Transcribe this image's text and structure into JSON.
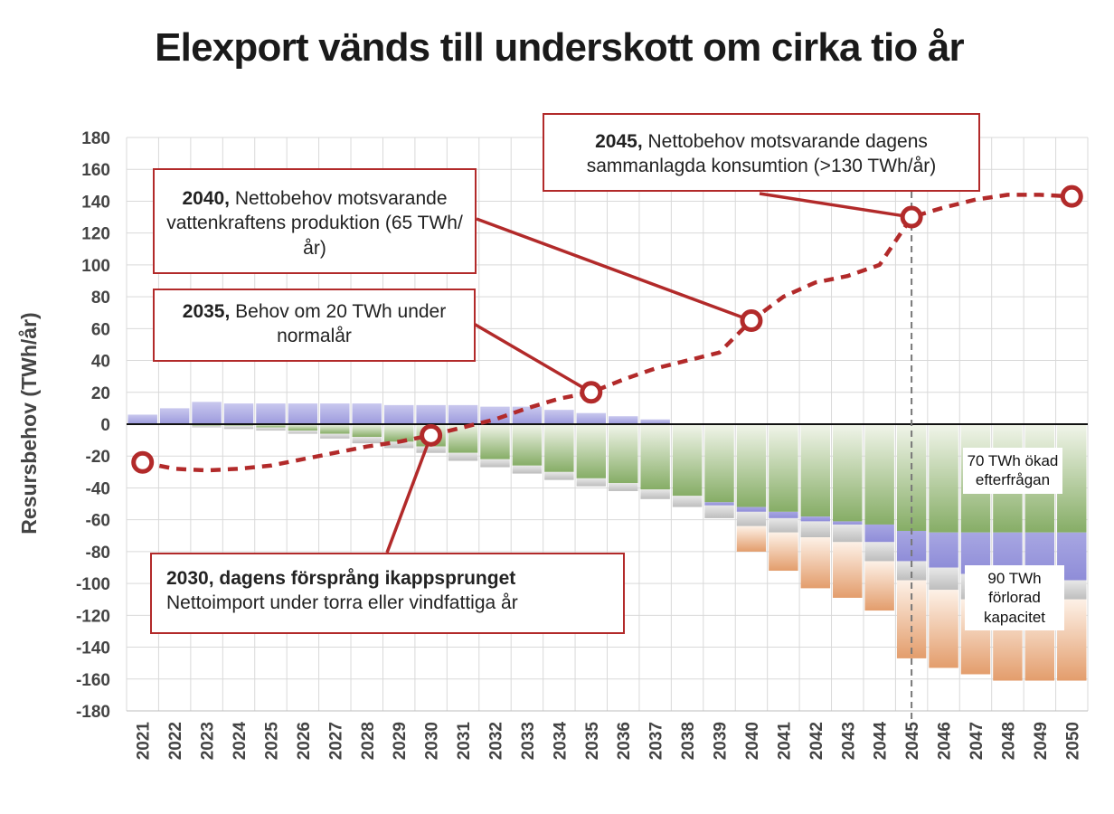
{
  "title": "Elexport vänds till underskott om cirka tio år",
  "chart_data": {
    "type": "bar",
    "ylabel": "Resursbehov (TWh/år)",
    "ylim": [
      -180,
      180
    ],
    "yticks": [
      180,
      160,
      140,
      120,
      100,
      80,
      60,
      40,
      20,
      0,
      -20,
      -40,
      -60,
      -80,
      -100,
      -120,
      -140,
      -160,
      -180
    ],
    "categories": [
      "2021",
      "2022",
      "2023",
      "2024",
      "2025",
      "2026",
      "2027",
      "2028",
      "2029",
      "2030",
      "2031",
      "2032",
      "2033",
      "2034",
      "2035",
      "2036",
      "2037",
      "2038",
      "2039",
      "2040",
      "2041",
      "2042",
      "2043",
      "2044",
      "2045",
      "2046",
      "2047",
      "2048",
      "2049",
      "2050"
    ],
    "stacks": {
      "export_surplus": {
        "color": "#a9a6dc",
        "values": [
          6,
          10,
          14,
          13,
          13,
          13,
          13,
          13,
          12,
          12,
          12,
          11,
          11,
          9,
          7,
          5,
          3,
          0,
          0,
          0,
          0,
          0,
          0,
          0,
          0,
          0,
          0,
          0,
          0,
          0
        ]
      },
      "increased_demand": {
        "color": "#8fb26d",
        "values": [
          0,
          0,
          -1,
          -1,
          -2,
          -4,
          -6,
          -8,
          -11,
          -14,
          -18,
          -22,
          -26,
          -30,
          -34,
          -37,
          -41,
          -45,
          -49,
          -52,
          -55,
          -58,
          -61,
          -63,
          -67,
          -68,
          -68,
          -68,
          -68,
          -68
        ]
      },
      "demand_capacity_overlap": {
        "color": "#8f8fd8",
        "values": [
          0,
          0,
          0,
          0,
          0,
          0,
          0,
          0,
          0,
          0,
          0,
          0,
          0,
          0,
          0,
          0,
          0,
          0,
          -2,
          -3,
          -4,
          -3,
          -2,
          -11,
          -19,
          -22,
          -26,
          -28,
          -30,
          -30
        ]
      },
      "grey_margin": {
        "color": "#c8c8c8",
        "values": [
          0,
          0,
          -1,
          -2,
          -2,
          -2,
          -3,
          -4,
          -4,
          -4,
          -5,
          -5,
          -5,
          -5,
          -5,
          -5,
          -6,
          -7,
          -8,
          -9,
          -9,
          -10,
          -11,
          -12,
          -12,
          -14,
          -16,
          -14,
          -14,
          -12
        ]
      },
      "lost_capacity": {
        "color": "#e7a97e",
        "values": [
          0,
          0,
          0,
          0,
          0,
          0,
          0,
          0,
          0,
          0,
          0,
          0,
          0,
          0,
          0,
          0,
          0,
          0,
          0,
          -16,
          -24,
          -32,
          -35,
          -31,
          -49,
          -49,
          -47,
          -51,
          -49,
          -51
        ]
      }
    },
    "series": [
      {
        "name": "Nettobehov",
        "style": "dashed",
        "color": "#b22a2a",
        "values": [
          -24,
          -28,
          -29,
          -28,
          -26,
          -22,
          -18,
          -14,
          -11,
          -7,
          -2,
          3,
          10,
          16,
          20,
          28,
          35,
          40,
          45,
          65,
          80,
          89,
          93,
          100,
          130,
          136,
          141,
          144,
          144,
          143
        ]
      }
    ],
    "highlighted_points": [
      "2021",
      "2030",
      "2035",
      "2040",
      "2045",
      "2050"
    ],
    "reference_line_year": "2045",
    "grid": true
  },
  "annotations": {
    "a2045": {
      "bold": "2045,",
      "text": " Nettobehov motsvarande dagens sammanlagda konsumtion (>130 TWh/år)"
    },
    "a2040": {
      "bold": "2040,",
      "text": " Nettobehov motsvarande vattenkraftens produktion (65 TWh/år)"
    },
    "a2035": {
      "bold": "2035,",
      "text": " Behov om 20 TWh under normalår"
    },
    "a2030": {
      "bold": "2030, dagens försprång ikappsprunget",
      "text": "Nettoimport under torra eller vindfattiga år"
    },
    "demand_label": "70 TWh ökad efterfrågan",
    "capacity_label": "90 TWh förlorad kapacitet"
  }
}
